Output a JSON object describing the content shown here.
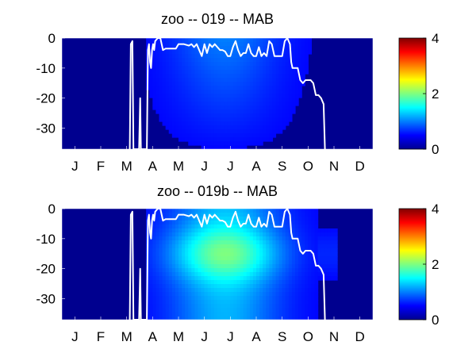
{
  "chart_data": [
    {
      "type": "heatmap",
      "title": "zoo -- 019 -- MAB",
      "x_ticks": [
        "J",
        "F",
        "M",
        "A",
        "M",
        "J",
        "J",
        "A",
        "S",
        "O",
        "N",
        "D"
      ],
      "y_ticks": [
        "0",
        "-10",
        "-20",
        "-30"
      ],
      "ylim": [
        -37,
        0
      ],
      "xlim": [
        0,
        12
      ],
      "colorbar": {
        "min": 0,
        "max": 4,
        "ticks": [
          "0",
          "2",
          "4"
        ],
        "colormap": "jet"
      },
      "intensity_hint": 0.35,
      "mixed_layer_depth_line": {
        "color": "#ffffff",
        "points": [
          [
            2.62,
            -37
          ],
          [
            2.66,
            -2
          ],
          [
            2.72,
            -1
          ],
          [
            2.76,
            -37
          ],
          [
            2.98,
            -37
          ],
          [
            3.02,
            -20
          ],
          [
            3.05,
            -37
          ],
          [
            3.28,
            -37
          ],
          [
            3.32,
            -4
          ],
          [
            3.36,
            -2
          ],
          [
            3.4,
            -8
          ],
          [
            3.44,
            -10
          ],
          [
            3.48,
            -4
          ],
          [
            3.52,
            -2
          ],
          [
            3.56,
            -4
          ],
          [
            3.6,
            -1
          ],
          [
            3.7,
            0
          ],
          [
            3.8,
            0
          ],
          [
            3.9,
            -4
          ],
          [
            4.0,
            -3.5
          ],
          [
            4.2,
            -3.5
          ],
          [
            4.4,
            -3.5
          ],
          [
            4.5,
            -2
          ],
          [
            4.7,
            -2
          ],
          [
            4.9,
            -2.5
          ],
          [
            5.0,
            -2
          ],
          [
            5.1,
            -3
          ],
          [
            5.2,
            -2
          ],
          [
            5.3,
            -4
          ],
          [
            5.4,
            -6
          ],
          [
            5.5,
            -2
          ],
          [
            5.6,
            -5
          ],
          [
            5.7,
            -2
          ],
          [
            5.8,
            -3
          ],
          [
            5.9,
            -2
          ],
          [
            6.0,
            -3
          ],
          [
            6.1,
            -4
          ],
          [
            6.2,
            -4
          ],
          [
            6.3,
            -4.5
          ],
          [
            6.4,
            -6
          ],
          [
            6.5,
            -6
          ],
          [
            6.6,
            -3
          ],
          [
            6.7,
            -1
          ],
          [
            6.8,
            -4
          ],
          [
            6.9,
            -6
          ],
          [
            7.0,
            -5
          ],
          [
            7.1,
            -5
          ],
          [
            7.2,
            -2
          ],
          [
            7.3,
            -5
          ],
          [
            7.4,
            -6
          ],
          [
            7.5,
            -6
          ],
          [
            7.6,
            -3
          ],
          [
            7.7,
            -6
          ],
          [
            7.8,
            -5
          ],
          [
            7.9,
            -6
          ],
          [
            8.0,
            -1
          ],
          [
            8.1,
            -2
          ],
          [
            8.2,
            -6
          ],
          [
            8.3,
            -6
          ],
          [
            8.4,
            -6
          ],
          [
            8.5,
            -6
          ],
          [
            8.6,
            -1
          ],
          [
            8.7,
            0
          ],
          [
            8.8,
            -2
          ],
          [
            8.85,
            -8
          ],
          [
            8.9,
            -10
          ],
          [
            9.0,
            -10
          ],
          [
            9.1,
            -10
          ],
          [
            9.2,
            -14
          ],
          [
            9.3,
            -15
          ],
          [
            9.4,
            -14
          ],
          [
            9.5,
            -14
          ],
          [
            9.6,
            -14
          ],
          [
            9.7,
            -15
          ],
          [
            9.8,
            -19
          ],
          [
            9.9,
            -19
          ],
          [
            10.0,
            -20
          ],
          [
            10.1,
            -22
          ],
          [
            10.15,
            -37
          ]
        ]
      }
    },
    {
      "type": "heatmap",
      "title": "zoo -- 019b -- MAB",
      "x_ticks": [
        "J",
        "F",
        "M",
        "A",
        "M",
        "J",
        "J",
        "A",
        "S",
        "O",
        "N",
        "D"
      ],
      "y_ticks": [
        "0",
        "-10",
        "-20",
        "-30"
      ],
      "ylim": [
        -37,
        0
      ],
      "xlim": [
        0,
        12
      ],
      "colorbar": {
        "min": 0,
        "max": 4,
        "ticks": [
          "0",
          "2",
          "4"
        ],
        "colormap": "jet"
      },
      "intensity_hint": 0.75,
      "mixed_layer_depth_line": {
        "color": "#ffffff",
        "points": [
          [
            2.62,
            -37
          ],
          [
            2.66,
            -2
          ],
          [
            2.72,
            -1
          ],
          [
            2.76,
            -37
          ],
          [
            2.98,
            -37
          ],
          [
            3.02,
            -20
          ],
          [
            3.05,
            -37
          ],
          [
            3.28,
            -37
          ],
          [
            3.32,
            -4
          ],
          [
            3.36,
            -2
          ],
          [
            3.4,
            -8
          ],
          [
            3.44,
            -10
          ],
          [
            3.48,
            -4
          ],
          [
            3.52,
            -2
          ],
          [
            3.56,
            -4
          ],
          [
            3.6,
            -1
          ],
          [
            3.7,
            0
          ],
          [
            3.8,
            0
          ],
          [
            3.9,
            -4
          ],
          [
            4.0,
            -3.5
          ],
          [
            4.2,
            -3.5
          ],
          [
            4.4,
            -3.5
          ],
          [
            4.5,
            -2
          ],
          [
            4.7,
            -2
          ],
          [
            4.9,
            -2.5
          ],
          [
            5.0,
            -2
          ],
          [
            5.1,
            -3
          ],
          [
            5.2,
            -2
          ],
          [
            5.3,
            -4
          ],
          [
            5.4,
            -6
          ],
          [
            5.5,
            -2
          ],
          [
            5.6,
            -5
          ],
          [
            5.7,
            -2
          ],
          [
            5.8,
            -3
          ],
          [
            5.9,
            -2
          ],
          [
            6.0,
            -3
          ],
          [
            6.1,
            -4
          ],
          [
            6.2,
            -4
          ],
          [
            6.3,
            -4.5
          ],
          [
            6.4,
            -6
          ],
          [
            6.5,
            -6
          ],
          [
            6.6,
            -3
          ],
          [
            6.7,
            -1
          ],
          [
            6.8,
            -4
          ],
          [
            6.9,
            -6
          ],
          [
            7.0,
            -5
          ],
          [
            7.1,
            -5
          ],
          [
            7.2,
            -2
          ],
          [
            7.3,
            -5
          ],
          [
            7.4,
            -6
          ],
          [
            7.5,
            -6
          ],
          [
            7.6,
            -3
          ],
          [
            7.7,
            -6
          ],
          [
            7.8,
            -5
          ],
          [
            7.9,
            -6
          ],
          [
            8.0,
            -1
          ],
          [
            8.1,
            -2
          ],
          [
            8.2,
            -6
          ],
          [
            8.3,
            -6
          ],
          [
            8.4,
            -6
          ],
          [
            8.5,
            -6
          ],
          [
            8.6,
            -1
          ],
          [
            8.7,
            0
          ],
          [
            8.8,
            -2
          ],
          [
            8.85,
            -8
          ],
          [
            8.9,
            -10
          ],
          [
            9.0,
            -10
          ],
          [
            9.1,
            -10
          ],
          [
            9.2,
            -14
          ],
          [
            9.3,
            -15
          ],
          [
            9.4,
            -14
          ],
          [
            9.5,
            -14
          ],
          [
            9.6,
            -14
          ],
          [
            9.7,
            -15
          ],
          [
            9.8,
            -19
          ],
          [
            9.9,
            -19
          ],
          [
            10.0,
            -20
          ],
          [
            10.1,
            -22
          ],
          [
            10.15,
            -37
          ]
        ]
      }
    }
  ]
}
